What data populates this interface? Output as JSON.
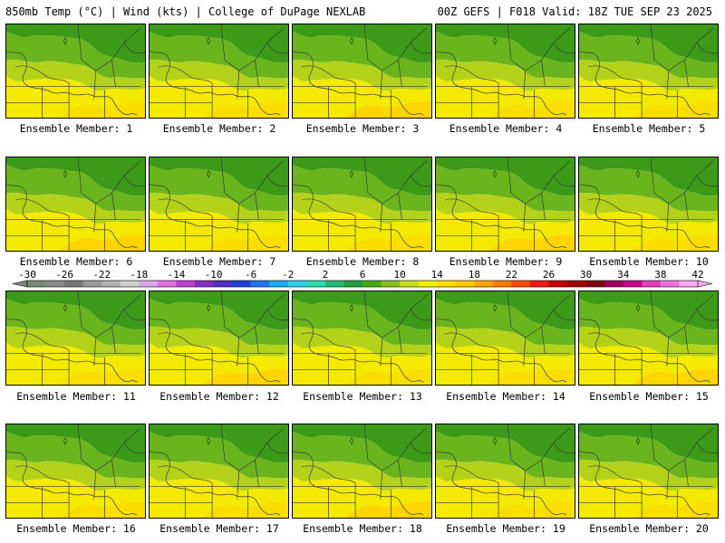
{
  "header": {
    "title": "850mb Temp (°C) | Wind (kts) | College of DuPage NEXLAB",
    "run_info": "00Z GEFS | F018 Valid: 18Z TUE SEP 23 2025"
  },
  "panels": [
    {
      "label": "Ensemble Member: 1",
      "member": 1
    },
    {
      "label": "Ensemble Member: 2",
      "member": 2
    },
    {
      "label": "Ensemble Member: 3",
      "member": 3
    },
    {
      "label": "Ensemble Member: 4",
      "member": 4
    },
    {
      "label": "Ensemble Member: 5",
      "member": 5
    },
    {
      "label": "Ensemble Member: 6",
      "member": 6
    },
    {
      "label": "Ensemble Member: 7",
      "member": 7
    },
    {
      "label": "Ensemble Member: 8",
      "member": 8
    },
    {
      "label": "Ensemble Member: 9",
      "member": 9
    },
    {
      "label": "Ensemble Member: 10",
      "member": 10
    },
    {
      "label": "Ensemble Member: 11",
      "member": 11
    },
    {
      "label": "Ensemble Member: 12",
      "member": 12
    },
    {
      "label": "Ensemble Member: 13",
      "member": 13
    },
    {
      "label": "Ensemble Member: 14",
      "member": 14
    },
    {
      "label": "Ensemble Member: 15",
      "member": 15
    },
    {
      "label": "Ensemble Member: 16",
      "member": 16
    },
    {
      "label": "Ensemble Member: 17",
      "member": 17
    },
    {
      "label": "Ensemble Member: 18",
      "member": 18
    },
    {
      "label": "Ensemble Member: 19",
      "member": 19
    },
    {
      "label": "Ensemble Member: 20",
      "member": 20
    }
  ],
  "colorbar": {
    "ticks": [
      "-30",
      "-26",
      "-22",
      "-18",
      "-14",
      "-10",
      "-6",
      "-2",
      "2",
      "6",
      "10",
      "14",
      "18",
      "22",
      "26",
      "30",
      "34",
      "38",
      "42"
    ],
    "colors": [
      "#7a8a78",
      "#8a8a8a",
      "#787878",
      "#9a9a9a",
      "#b0b0b0",
      "#cfcfcf",
      "#d8a8e8",
      "#e070e0",
      "#c040d0",
      "#8a2bc8",
      "#5030c0",
      "#2040d8",
      "#2070f0",
      "#20a8f0",
      "#30d0e8",
      "#30d8b0",
      "#20b878",
      "#20a040",
      "#48a818",
      "#88c020",
      "#c8dc20",
      "#f0f000",
      "#ffe000",
      "#ffc800",
      "#ffa500",
      "#ff7a00",
      "#ff4800",
      "#f01818",
      "#c80000",
      "#a00000",
      "#800010",
      "#a00060",
      "#c80090",
      "#e040c0",
      "#f070e0",
      "#f8a8f0"
    ]
  },
  "map_palette": {
    "dark_green": "#3c9a18",
    "green": "#6ab41e",
    "yellow_green": "#b4d21a",
    "yellow": "#f4ea00",
    "gold": "#ffd300",
    "orange": "#f4b800",
    "boundary_line": "#3a3a3a"
  }
}
